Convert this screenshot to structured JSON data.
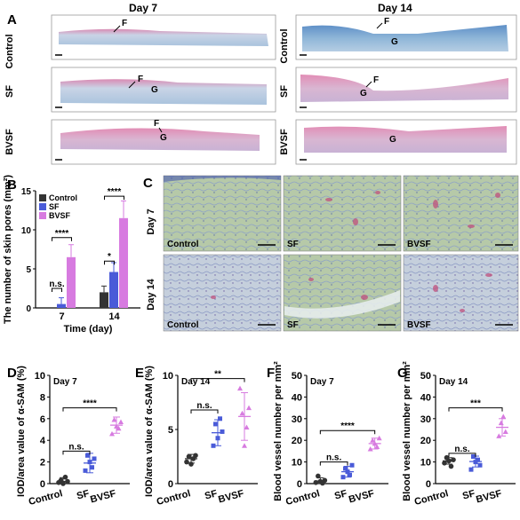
{
  "panelA": {
    "letter": "A",
    "day7": "Day 7",
    "day14": "Day 14",
    "rows": [
      "Control",
      "SF",
      "BVSF"
    ],
    "markers": {
      "d7_control": [
        "F"
      ],
      "d7_sf": [
        "F",
        "G"
      ],
      "d7_bvsf": [
        "F",
        "G"
      ],
      "d14_control": [
        "F",
        "G"
      ],
      "d14_sf": [
        "F",
        "G"
      ],
      "d14_bvsf": [
        "G"
      ]
    }
  },
  "panelB": {
    "letter": "B",
    "ylabel": "The number of skin pores (mm²)",
    "xlabel": "Time (day)",
    "sig": [
      "n.s.",
      "****",
      "*",
      "****"
    ]
  },
  "panelC": {
    "letter": "C",
    "rows": [
      "Day 7",
      "Day 14"
    ],
    "cols": [
      "Control",
      "SF",
      "BVSF"
    ]
  },
  "panelD": {
    "letter": "D",
    "day": "Day 7",
    "ylabel": "IOD/area value of α-SAM (%)",
    "sig": [
      "n.s.",
      "****"
    ]
  },
  "panelE": {
    "letter": "E",
    "day": "Day 14",
    "ylabel": "IOD/area value of α-SAM (%)",
    "sig": [
      "n.s.",
      "**"
    ]
  },
  "panelF": {
    "letter": "F",
    "day": "Day 7",
    "ylabel": "Blood vessel number per mm²",
    "sig": [
      "n.s.",
      "****"
    ]
  },
  "panelG": {
    "letter": "G",
    "day": "Day 14",
    "ylabel": "Blood vessel number per mm²",
    "sig": [
      "n.s.",
      "***"
    ]
  },
  "colors": {
    "control": "#333333",
    "sf": "#4a5bd8",
    "bvsf": "#d77be0",
    "tissue_blue": "#8fb6d8",
    "tissue_pink": "#d36a9a"
  },
  "chart_data": [
    {
      "id": "B",
      "type": "bar",
      "categories": [
        "7",
        "14"
      ],
      "series": [
        {
          "name": "Control",
          "values": [
            0.0,
            2.0
          ],
          "errors": [
            0.0,
            0.8
          ]
        },
        {
          "name": "SF",
          "values": [
            0.5,
            4.6
          ],
          "errors": [
            0.8,
            1.2
          ]
        },
        {
          "name": "BVSF",
          "values": [
            6.5,
            11.5
          ],
          "errors": [
            1.6,
            2.2
          ]
        }
      ],
      "xlabel": "Time (day)",
      "ylabel": "The number of skin pores (mm²)",
      "ylim": [
        0,
        15
      ],
      "yticks": [
        0,
        5,
        10,
        15
      ],
      "legend": "top-left"
    },
    {
      "id": "D",
      "type": "scatter",
      "categories": [
        "Control",
        "SF",
        "BVSF"
      ],
      "points": [
        [
          0.1,
          0.3,
          0.0,
          0.6,
          0.2
        ],
        [
          1.2,
          2.6,
          2.0,
          1.5,
          2.3
        ],
        [
          4.6,
          5.9,
          5.3,
          5.1,
          5.7
        ]
      ],
      "mean": [
        0.2,
        1.9,
        5.4
      ],
      "sd": [
        0.35,
        0.9,
        0.75
      ],
      "ylabel": "IOD/area value of α-SAM (%)",
      "ylim": [
        0,
        10
      ],
      "yticks": [
        0,
        2,
        4,
        6,
        8,
        10
      ]
    },
    {
      "id": "E",
      "type": "scatter",
      "categories": [
        "Control",
        "SF",
        "BVSF"
      ],
      "points": [
        [
          2.0,
          2.5,
          1.8,
          2.3,
          2.6
        ],
        [
          3.5,
          5.5,
          4.2,
          6.0,
          4.8
        ],
        [
          8.8,
          6.5,
          3.5,
          5.2,
          7.0
        ]
      ],
      "mean": [
        2.3,
        4.7,
        6.2
      ],
      "sd": [
        0.4,
        1.2,
        2.2
      ],
      "ylabel": "IOD/area value of α-SAM (%)",
      "ylim": [
        0,
        10
      ],
      "yticks": [
        0,
        5,
        10
      ]
    },
    {
      "id": "F",
      "type": "scatter",
      "categories": [
        "Control",
        "SF",
        "BVSF"
      ],
      "points": [
        [
          0.5,
          3.5,
          1.0,
          0.2,
          1.5
        ],
        [
          3.0,
          7.0,
          5.5,
          4.0,
          8.5
        ],
        [
          16.0,
          20.0,
          18.5,
          17.0,
          21.0
        ]
      ],
      "mean": [
        1.2,
        5.5,
        18.5
      ],
      "sd": [
        1.5,
        2.5,
        2.5
      ],
      "ylabel": "Blood vessel number per mm²",
      "ylim": [
        0,
        50
      ],
      "yticks": [
        0,
        10,
        20,
        30,
        40,
        50
      ]
    },
    {
      "id": "G",
      "type": "scatter",
      "categories": [
        "Control",
        "SF",
        "BVSF"
      ],
      "points": [
        [
          9.5,
          12.0,
          10.5,
          8.0,
          11.0
        ],
        [
          6.5,
          12.5,
          10.0,
          11.0,
          8.5
        ],
        [
          22.0,
          28.0,
          31.0,
          24.0
        ]
      ],
      "mean": [
        10.5,
        10.2,
        26.0
      ],
      "sd": [
        1.5,
        2.5,
        4.0
      ],
      "ylabel": "Blood vessel number per mm²",
      "ylim": [
        0,
        50
      ],
      "yticks": [
        0,
        10,
        20,
        30,
        40,
        50
      ]
    }
  ]
}
